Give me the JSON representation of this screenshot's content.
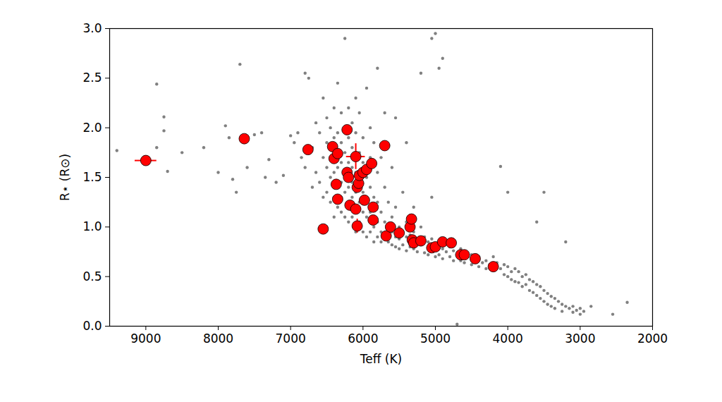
{
  "chart_data": {
    "type": "scatter",
    "x_label": "Teff (K)",
    "y_label": "R⋆ (R⊙)",
    "xlim": [
      9500,
      2000
    ],
    "ylim": [
      0,
      3
    ],
    "xticks": [
      9000,
      8000,
      7000,
      6000,
      5000,
      4000,
      3000,
      2000
    ],
    "yticks": [
      {
        "value": 0,
        "label": "0.0"
      },
      0.5,
      {
        "value": 1,
        "label": "1.0"
      },
      1.5,
      {
        "value": 2,
        "label": "2.0"
      },
      2.5,
      {
        "value": 3,
        "label": "3.0"
      }
    ],
    "grid": false,
    "series": [
      {
        "color": "#808080",
        "marker": "circle",
        "x": [
          9400,
          8850,
          8850,
          8750,
          8750,
          8700,
          8500,
          8200,
          8000,
          7900,
          7850,
          7800,
          7750,
          7700,
          7650,
          7600,
          7500,
          7400,
          7350,
          7300,
          7200,
          7100,
          7000,
          6950,
          6900,
          6850,
          6800,
          6800,
          6750,
          6700,
          6700,
          6650,
          6650,
          6600,
          6600,
          6550,
          6550,
          6550,
          6500,
          6500,
          6500,
          6500,
          6450,
          6450,
          6450,
          6400,
          6400,
          6400,
          6400,
          6400,
          6350,
          6350,
          6350,
          6350,
          6300,
          6300,
          6300,
          6300,
          6300,
          6300,
          6250,
          6250,
          6250,
          6250,
          6250,
          6200,
          6200,
          6200,
          6200,
          6200,
          6200,
          6150,
          6150,
          6150,
          6150,
          6150,
          6150,
          6100,
          6100,
          6100,
          6100,
          6100,
          6100,
          6050,
          6050,
          6050,
          6050,
          6050,
          6000,
          6000,
          6000,
          6000,
          6000,
          5950,
          5950,
          5950,
          5950,
          5950,
          5900,
          5900,
          5900,
          5900,
          5900,
          5850,
          5850,
          5850,
          5850,
          5800,
          5800,
          5800,
          5800,
          5800,
          5750,
          5750,
          5750,
          5750,
          5700,
          5700,
          5700,
          5700,
          5650,
          5650,
          5650,
          5600,
          5600,
          5600,
          5600,
          5550,
          5550,
          5550,
          5550,
          5500,
          5500,
          5500,
          5450,
          5450,
          5450,
          5400,
          5400,
          5400,
          5400,
          5350,
          5350,
          5300,
          5300,
          5300,
          5250,
          5250,
          5200,
          5200,
          5200,
          5150,
          5150,
          5100,
          5100,
          5050,
          5050,
          5050,
          5050,
          5000,
          5000,
          5000,
          4950,
          4950,
          4950,
          4900,
          4900,
          4900,
          4850,
          4800,
          4800,
          4750,
          4750,
          4700,
          4700,
          4650,
          4650,
          4600,
          4600,
          4550,
          4500,
          4500,
          4450,
          4400,
          4400,
          4350,
          4300,
          4300,
          4250,
          4200,
          4200,
          4150,
          4100,
          4100,
          4050,
          4050,
          4000,
          4000,
          4000,
          3950,
          3950,
          3900,
          3900,
          3850,
          3850,
          3800,
          3800,
          3750,
          3750,
          3700,
          3700,
          3650,
          3650,
          3600,
          3600,
          3600,
          3550,
          3550,
          3500,
          3500,
          3500,
          3450,
          3450,
          3400,
          3400,
          3350,
          3350,
          3300,
          3250,
          3250,
          3200,
          3200,
          3150,
          3100,
          3100,
          3050,
          3000,
          3000,
          2950,
          2850,
          2550,
          2350
        ],
        "values": [
          1.77,
          2.44,
          1.8,
          2.11,
          1.97,
          1.56,
          1.75,
          1.8,
          1.55,
          2.02,
          1.9,
          1.48,
          1.35,
          2.64,
          1.92,
          1.6,
          1.93,
          1.95,
          1.5,
          1.68,
          1.45,
          1.52,
          1.92,
          1.85,
          1.95,
          1.7,
          2.55,
          1.6,
          2.5,
          1.8,
          1.4,
          2.05,
          1.55,
          1.95,
          1.45,
          2.3,
          1.7,
          1.3,
          2.1,
          1.85,
          1.6,
          1.35,
          2.0,
          1.5,
          1.25,
          2.2,
          1.9,
          1.55,
          1.3,
          1.1,
          2.45,
          1.95,
          1.6,
          1.2,
          2.15,
          1.85,
          1.65,
          1.45,
          1.3,
          1.15,
          2.9,
          1.75,
          1.55,
          1.35,
          1.1,
          2.2,
          1.9,
          1.65,
          1.4,
          1.25,
          1.05,
          2.05,
          1.8,
          1.6,
          1.45,
          1.3,
          1.1,
          2.3,
          1.95,
          1.55,
          1.35,
          1.2,
          0.95,
          2.15,
          1.75,
          1.45,
          1.25,
          1.05,
          1.9,
          1.65,
          1.35,
          1.15,
          0.95,
          2.4,
          1.5,
          1.3,
          1.1,
          0.9,
          2.0,
          1.7,
          1.4,
          1.15,
          0.95,
          1.85,
          1.3,
          1.0,
          0.85,
          2.6,
          1.55,
          1.25,
          1.05,
          0.9,
          1.7,
          1.15,
          0.95,
          0.85,
          2.15,
          1.4,
          1.05,
          0.9,
          1.25,
          1.0,
          0.85,
          1.6,
          1.1,
          0.95,
          0.82,
          2.1,
          1.2,
          0.9,
          0.8,
          1.0,
          0.88,
          0.78,
          1.35,
          0.95,
          0.82,
          1.85,
          1.05,
          0.9,
          0.76,
          0.92,
          0.8,
          1.2,
          0.95,
          0.78,
          0.88,
          0.75,
          2.55,
          1.0,
          0.82,
          0.9,
          0.74,
          0.85,
          0.72,
          2.9,
          1.3,
          0.88,
          0.76,
          2.95,
          0.82,
          0.7,
          2.6,
          0.8,
          0.72,
          2.7,
          0.78,
          0.68,
          0.75,
          0.8,
          0.7,
          0.76,
          0.66,
          0.72,
          0.02,
          0.78,
          0.66,
          0.74,
          0.64,
          0.7,
          0.72,
          0.62,
          0.66,
          0.7,
          0.6,
          0.64,
          0.66,
          0.58,
          0.62,
          0.7,
          0.56,
          0.64,
          1.61,
          0.58,
          0.62,
          0.52,
          1.35,
          0.6,
          0.5,
          0.55,
          0.47,
          0.58,
          0.45,
          0.55,
          0.44,
          0.5,
          0.4,
          0.52,
          0.42,
          0.47,
          0.36,
          0.45,
          0.34,
          1.05,
          0.42,
          0.31,
          0.4,
          0.28,
          1.35,
          0.36,
          0.25,
          0.33,
          0.22,
          0.3,
          0.2,
          0.28,
          0.18,
          0.25,
          0.22,
          0.15,
          0.85,
          0.2,
          0.18,
          0.2,
          0.14,
          0.16,
          0.18,
          0.12,
          0.15,
          0.2,
          0.12,
          0.24
        ]
      },
      {
        "color": "#ff0000",
        "marker": "circle",
        "x": [
          9000,
          7640,
          6760,
          6420,
          6400,
          6350,
          6370,
          6350,
          6220,
          6220,
          6200,
          6180,
          6100,
          6100,
          6080,
          6080,
          6060,
          6050,
          6000,
          5980,
          5950,
          5880,
          5860,
          5860,
          5700,
          5680,
          5620,
          5500,
          5350,
          5330,
          5320,
          5300,
          5200,
          5050,
          5000,
          4900,
          4780,
          4650,
          4600,
          4450,
          4200,
          6550
        ],
        "values": [
          1.67,
          1.89,
          1.78,
          1.81,
          1.69,
          1.74,
          1.43,
          1.28,
          1.98,
          1.55,
          1.5,
          1.22,
          1.71,
          1.18,
          1.01,
          1.4,
          1.44,
          1.52,
          1.55,
          1.27,
          1.58,
          1.64,
          1.2,
          1.07,
          1.82,
          0.91,
          1.0,
          0.94,
          1.0,
          1.08,
          0.87,
          0.84,
          0.86,
          0.79,
          0.8,
          0.85,
          0.84,
          0.72,
          0.72,
          0.68,
          0.6,
          0.98
        ],
        "x_err": [
          150,
          0,
          0,
          0,
          0,
          0,
          0,
          0,
          0,
          0,
          0,
          0,
          130,
          0,
          0,
          0,
          0,
          0,
          0,
          0,
          0,
          0,
          0,
          0,
          0,
          0,
          0,
          0,
          0,
          0,
          0,
          0,
          0,
          0,
          0,
          0,
          0,
          0,
          0,
          0,
          0,
          50
        ],
        "y_err": [
          0,
          0,
          0,
          0,
          0,
          0,
          0,
          0,
          0,
          0,
          0,
          0,
          0.13,
          0,
          0.07,
          0,
          0,
          0,
          0,
          0,
          0,
          0,
          0,
          0,
          0,
          0,
          0,
          0,
          0,
          0,
          0,
          0,
          0,
          0,
          0,
          0,
          0,
          0,
          0,
          0,
          0,
          0
        ]
      }
    ]
  }
}
